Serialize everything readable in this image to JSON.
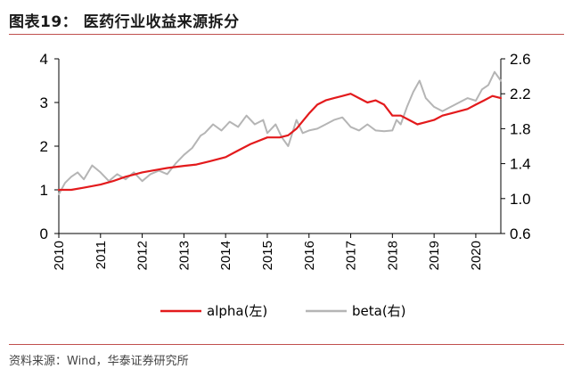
{
  "header": {
    "title": "图表19：  医药行业收益来源拆分"
  },
  "footer": {
    "source": "资料来源：Wind，华泰证券研究所"
  },
  "colors": {
    "alpha": "#e31a1c",
    "beta": "#b5b5b5",
    "accent_rule": "#c0504d"
  },
  "chart_data": {
    "type": "line",
    "title": "医药行业收益来源拆分",
    "xlabel": "",
    "ylabel": "",
    "x_ticks": [
      "2010",
      "2011",
      "2012",
      "2013",
      "2014",
      "2015",
      "2016",
      "2017",
      "2018",
      "2019",
      "2020"
    ],
    "xlim": [
      2010.0,
      2020.6
    ],
    "y_left": {
      "ticks": [
        "0",
        "1",
        "2",
        "3",
        "4"
      ],
      "ylim": [
        0,
        4
      ]
    },
    "y_right": {
      "ticks": [
        "0.6",
        "1.0",
        "1.4",
        "1.8",
        "2.2",
        "2.6"
      ],
      "ylim": [
        0.6,
        2.6
      ]
    },
    "legend": {
      "position": "bottom-center"
    },
    "series": [
      {
        "name": "alpha(左)",
        "axis": "left",
        "x": [
          2010.0,
          2010.3,
          2010.6,
          2011.0,
          2011.3,
          2011.6,
          2012.0,
          2012.3,
          2012.6,
          2013.0,
          2013.3,
          2013.6,
          2014.0,
          2014.3,
          2014.6,
          2015.0,
          2015.3,
          2015.5,
          2015.7,
          2016.0,
          2016.2,
          2016.4,
          2016.6,
          2016.8,
          2017.0,
          2017.2,
          2017.4,
          2017.6,
          2017.8,
          2018.0,
          2018.2,
          2018.4,
          2018.6,
          2018.8,
          2019.0,
          2019.2,
          2019.4,
          2019.6,
          2019.8,
          2020.0,
          2020.2,
          2020.4,
          2020.6
        ],
        "values": [
          1.0,
          1.0,
          1.05,
          1.12,
          1.2,
          1.3,
          1.4,
          1.45,
          1.5,
          1.55,
          1.58,
          1.65,
          1.75,
          1.9,
          2.05,
          2.2,
          2.2,
          2.25,
          2.4,
          2.75,
          2.95,
          3.05,
          3.1,
          3.15,
          3.2,
          3.1,
          3.0,
          3.05,
          2.95,
          2.7,
          2.7,
          2.6,
          2.5,
          2.55,
          2.6,
          2.7,
          2.75,
          2.8,
          2.85,
          2.95,
          3.05,
          3.15,
          3.1
        ]
      },
      {
        "name": "beta(右)",
        "axis": "right",
        "x": [
          2010.0,
          2010.15,
          2010.3,
          2010.45,
          2010.6,
          2010.8,
          2011.0,
          2011.2,
          2011.4,
          2011.6,
          2011.8,
          2012.0,
          2012.2,
          2012.4,
          2012.6,
          2012.8,
          2013.0,
          2013.2,
          2013.4,
          2013.5,
          2013.7,
          2013.9,
          2014.1,
          2014.3,
          2014.5,
          2014.7,
          2014.9,
          2015.0,
          2015.2,
          2015.35,
          2015.5,
          2015.7,
          2015.85,
          2016.0,
          2016.2,
          2016.4,
          2016.6,
          2016.8,
          2017.0,
          2017.2,
          2017.4,
          2017.6,
          2017.8,
          2018.0,
          2018.1,
          2018.2,
          2018.35,
          2018.5,
          2018.65,
          2018.8,
          2019.0,
          2019.2,
          2019.4,
          2019.6,
          2019.8,
          2020.0,
          2020.15,
          2020.3,
          2020.45,
          2020.6
        ],
        "values": [
          1.05,
          1.18,
          1.25,
          1.3,
          1.22,
          1.38,
          1.3,
          1.2,
          1.28,
          1.22,
          1.3,
          1.2,
          1.28,
          1.32,
          1.28,
          1.4,
          1.5,
          1.58,
          1.72,
          1.75,
          1.85,
          1.78,
          1.88,
          1.82,
          1.95,
          1.85,
          1.9,
          1.75,
          1.85,
          1.7,
          1.6,
          1.9,
          1.75,
          1.78,
          1.8,
          1.85,
          1.9,
          1.93,
          1.82,
          1.78,
          1.85,
          1.78,
          1.77,
          1.78,
          1.9,
          1.85,
          2.05,
          2.22,
          2.35,
          2.15,
          2.05,
          2.0,
          2.05,
          2.1,
          2.15,
          2.12,
          2.25,
          2.3,
          2.45,
          2.35
        ]
      }
    ]
  }
}
